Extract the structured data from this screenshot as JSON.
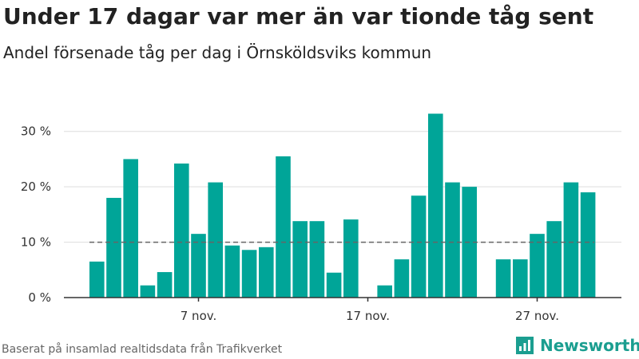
{
  "title": "Under 17 dagar var mer än var tionde tåg sent",
  "subtitle": "Andel försenade tåg per dag i Örnsköldsviks kommun",
  "source": "Baserat på insamlad realtidsdata från Trafikverket",
  "brand": "Newsworthy",
  "colors": {
    "bar": "#00a598",
    "reference": "#666666",
    "grid": "#dddddd",
    "axis": "#333333",
    "brand": "#1b9e90"
  },
  "chart_data": {
    "type": "bar",
    "title": "Under 17 dagar var mer än var tionde tåg sent",
    "subtitle": "Andel försenade tåg per dag i Örnsköldsviks kommun",
    "x": [
      "2024-11-01",
      "2024-11-02",
      "2024-11-03",
      "2024-11-04",
      "2024-11-05",
      "2024-11-06",
      "2024-11-07",
      "2024-11-08",
      "2024-11-09",
      "2024-11-10",
      "2024-11-11",
      "2024-11-12",
      "2024-11-13",
      "2024-11-14",
      "2024-11-15",
      "2024-11-16",
      "2024-11-17",
      "2024-11-18",
      "2024-11-19",
      "2024-11-20",
      "2024-11-21",
      "2024-11-22",
      "2024-11-23",
      "2024-11-24",
      "2024-11-25",
      "2024-11-26",
      "2024-11-27",
      "2024-11-28",
      "2024-11-29",
      "2024-11-30"
    ],
    "values": [
      6.5,
      18,
      25,
      2.2,
      4.6,
      24.2,
      11.5,
      20.8,
      9.4,
      8.6,
      9.1,
      25.5,
      13.8,
      13.8,
      4.5,
      14.1,
      null,
      2.2,
      6.9,
      18.4,
      33.2,
      20.8,
      20,
      null,
      6.9,
      6.9,
      11.5,
      13.8,
      20.8,
      19
    ],
    "y_ticks": [
      0,
      10,
      20,
      30
    ],
    "y_tick_labels": [
      "0 %",
      "10 %",
      "20 %",
      "30 %"
    ],
    "x_ticks": [
      "2024-11-07",
      "2024-11-17",
      "2024-11-27"
    ],
    "x_tick_labels": [
      "7 nov.",
      "17 nov.",
      "27 nov."
    ],
    "reference_line": 10,
    "ylim": [
      0,
      35
    ],
    "grid": true,
    "legend": "none"
  }
}
